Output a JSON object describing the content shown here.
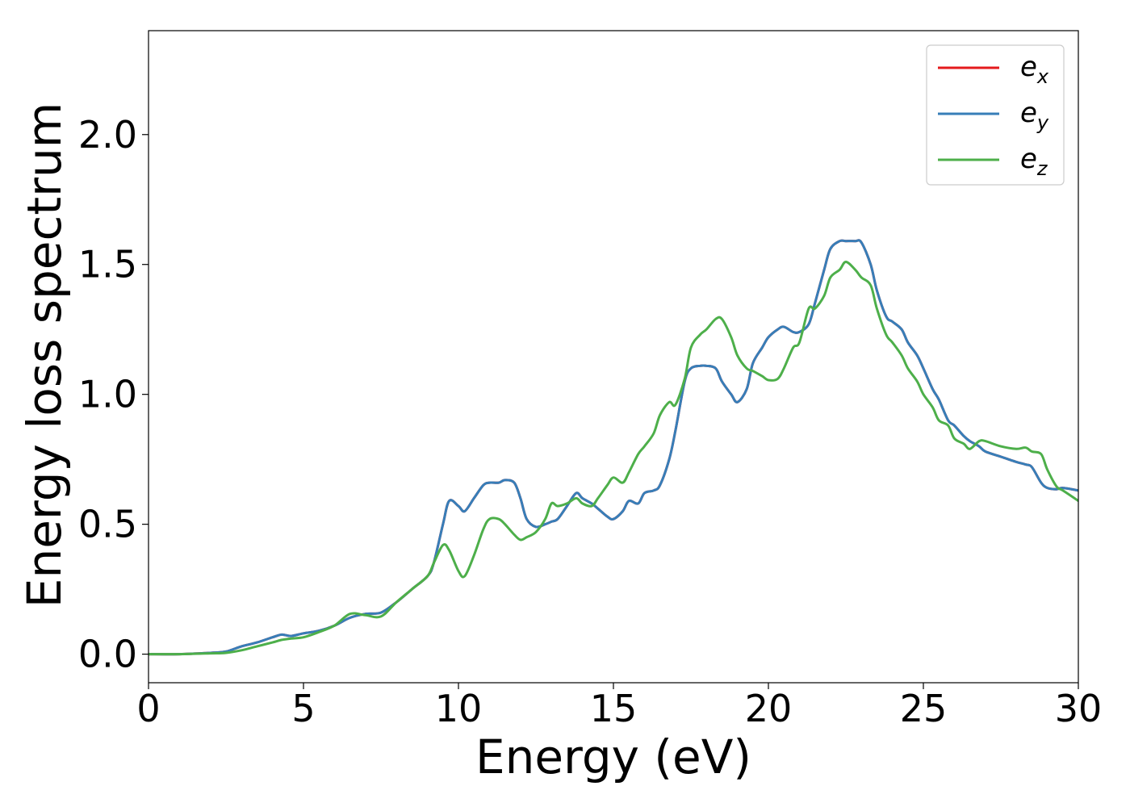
{
  "chart_data": {
    "type": "line",
    "xlabel": "Energy (eV)",
    "ylabel": "Energy loss spectrum",
    "xlim": [
      0,
      30
    ],
    "ylim": [
      -0.11,
      2.4
    ],
    "xticks": [
      0,
      5,
      10,
      15,
      20,
      25,
      30
    ],
    "xtick_labels": [
      "0",
      "5",
      "10",
      "15",
      "20",
      "25",
      "30"
    ],
    "yticks": [
      0.0,
      0.5,
      1.0,
      1.5,
      2.0
    ],
    "ytick_labels": [
      "0.0",
      "0.5",
      "1.0",
      "1.5",
      "2.0"
    ],
    "grid": false,
    "legend_position": "top-right",
    "series": [
      {
        "name": "e",
        "subscript": "x",
        "color": "#e41a1c",
        "x": [
          0,
          1,
          2,
          2.5,
          3,
          3.5,
          4,
          4.3,
          4.6,
          5,
          5.5,
          6,
          6.5,
          7,
          7.5,
          8,
          8.5,
          9,
          9.2,
          9.5,
          9.7,
          10,
          10.2,
          10.5,
          10.8,
          11,
          11.3,
          11.5,
          11.8,
          12,
          12.2,
          12.5,
          12.8,
          13,
          13.2,
          13.5,
          13.8,
          14,
          14.3,
          14.5,
          14.8,
          15,
          15.3,
          15.5,
          15.8,
          16,
          16.3,
          16.5,
          16.8,
          17,
          17.3,
          17.5,
          17.8,
          18,
          18.3,
          18.5,
          18.8,
          19,
          19.3,
          19.5,
          19.8,
          20,
          20.3,
          20.5,
          20.8,
          21,
          21.3,
          21.5,
          21.8,
          22,
          22.3,
          22.5,
          22.8,
          23,
          23.3,
          23.5,
          23.8,
          24,
          24.3,
          24.5,
          24.8,
          25,
          25.3,
          25.5,
          25.8,
          26,
          26.3,
          26.5,
          26.8,
          27,
          27.5,
          28,
          28.3,
          28.5,
          28.8,
          29,
          29.3,
          29.5,
          30
        ],
        "y": [
          0,
          0,
          0.005,
          0.01,
          0.03,
          0.045,
          0.065,
          0.075,
          0.07,
          0.08,
          0.09,
          0.11,
          0.14,
          0.155,
          0.16,
          0.2,
          0.25,
          0.3,
          0.35,
          0.5,
          0.59,
          0.57,
          0.55,
          0.6,
          0.65,
          0.66,
          0.66,
          0.67,
          0.66,
          0.6,
          0.52,
          0.49,
          0.5,
          0.51,
          0.52,
          0.57,
          0.62,
          0.6,
          0.58,
          0.56,
          0.53,
          0.52,
          0.55,
          0.59,
          0.58,
          0.62,
          0.63,
          0.65,
          0.75,
          0.86,
          1.05,
          1.1,
          1.11,
          1.11,
          1.1,
          1.05,
          1.0,
          0.97,
          1.02,
          1.12,
          1.18,
          1.22,
          1.25,
          1.26,
          1.24,
          1.24,
          1.27,
          1.35,
          1.48,
          1.56,
          1.59,
          1.59,
          1.59,
          1.585,
          1.5,
          1.4,
          1.3,
          1.28,
          1.25,
          1.2,
          1.15,
          1.1,
          1.02,
          0.98,
          0.9,
          0.88,
          0.84,
          0.82,
          0.8,
          0.78,
          0.76,
          0.74,
          0.73,
          0.72,
          0.66,
          0.64,
          0.635,
          0.64,
          0.63
        ]
      },
      {
        "name": "e",
        "subscript": "y",
        "color": "#377eb8",
        "x": [
          0,
          1,
          2,
          2.5,
          3,
          3.5,
          4,
          4.3,
          4.6,
          5,
          5.5,
          6,
          6.5,
          7,
          7.5,
          8,
          8.5,
          9,
          9.2,
          9.5,
          9.7,
          10,
          10.2,
          10.5,
          10.8,
          11,
          11.3,
          11.5,
          11.8,
          12,
          12.2,
          12.5,
          12.8,
          13,
          13.2,
          13.5,
          13.8,
          14,
          14.3,
          14.5,
          14.8,
          15,
          15.3,
          15.5,
          15.8,
          16,
          16.3,
          16.5,
          16.8,
          17,
          17.3,
          17.5,
          17.8,
          18,
          18.3,
          18.5,
          18.8,
          19,
          19.3,
          19.5,
          19.8,
          20,
          20.3,
          20.5,
          20.8,
          21,
          21.3,
          21.5,
          21.8,
          22,
          22.3,
          22.5,
          22.8,
          23,
          23.3,
          23.5,
          23.8,
          24,
          24.3,
          24.5,
          24.8,
          25,
          25.3,
          25.5,
          25.8,
          26,
          26.3,
          26.5,
          26.8,
          27,
          27.5,
          28,
          28.3,
          28.5,
          28.8,
          29,
          29.3,
          29.5,
          30
        ],
        "y": [
          0,
          0,
          0.005,
          0.01,
          0.03,
          0.045,
          0.065,
          0.075,
          0.07,
          0.08,
          0.09,
          0.11,
          0.14,
          0.155,
          0.16,
          0.2,
          0.25,
          0.3,
          0.35,
          0.5,
          0.59,
          0.57,
          0.55,
          0.6,
          0.65,
          0.66,
          0.66,
          0.67,
          0.66,
          0.6,
          0.52,
          0.49,
          0.5,
          0.51,
          0.52,
          0.57,
          0.62,
          0.6,
          0.58,
          0.56,
          0.53,
          0.52,
          0.55,
          0.59,
          0.58,
          0.62,
          0.63,
          0.65,
          0.75,
          0.86,
          1.05,
          1.1,
          1.11,
          1.11,
          1.1,
          1.05,
          1.0,
          0.97,
          1.02,
          1.12,
          1.18,
          1.22,
          1.25,
          1.26,
          1.24,
          1.24,
          1.27,
          1.35,
          1.48,
          1.56,
          1.59,
          1.59,
          1.59,
          1.585,
          1.5,
          1.4,
          1.3,
          1.28,
          1.25,
          1.2,
          1.15,
          1.1,
          1.02,
          0.98,
          0.9,
          0.88,
          0.84,
          0.82,
          0.8,
          0.78,
          0.76,
          0.74,
          0.73,
          0.72,
          0.66,
          0.64,
          0.635,
          0.64,
          0.63
        ]
      },
      {
        "name": "e",
        "subscript": "z",
        "color": "#4daf4a",
        "x": [
          0,
          1,
          2,
          2.5,
          3,
          3.5,
          4,
          4.3,
          4.6,
          5,
          5.5,
          6,
          6.5,
          7,
          7.5,
          8,
          8.5,
          9,
          9.2,
          9.5,
          9.7,
          10,
          10.2,
          10.5,
          10.8,
          11,
          11.3,
          11.5,
          11.8,
          12,
          12.2,
          12.5,
          12.8,
          13,
          13.2,
          13.5,
          13.8,
          14,
          14.3,
          14.5,
          14.8,
          15,
          15.3,
          15.5,
          15.8,
          16,
          16.3,
          16.5,
          16.8,
          17,
          17.3,
          17.5,
          17.8,
          18,
          18.3,
          18.5,
          18.8,
          19,
          19.3,
          19.5,
          19.8,
          20,
          20.3,
          20.5,
          20.8,
          21,
          21.3,
          21.5,
          21.8,
          22,
          22.3,
          22.5,
          22.8,
          23,
          23.3,
          23.5,
          23.8,
          24,
          24.3,
          24.5,
          24.8,
          25,
          25.3,
          25.5,
          25.8,
          26,
          26.3,
          26.5,
          26.8,
          27,
          27.5,
          28,
          28.3,
          28.5,
          28.8,
          29,
          29.3,
          29.5,
          30
        ],
        "y": [
          0,
          0,
          0.003,
          0.005,
          0.015,
          0.03,
          0.045,
          0.055,
          0.06,
          0.065,
          0.085,
          0.11,
          0.155,
          0.15,
          0.145,
          0.2,
          0.25,
          0.3,
          0.35,
          0.42,
          0.4,
          0.32,
          0.3,
          0.38,
          0.48,
          0.52,
          0.52,
          0.5,
          0.46,
          0.44,
          0.45,
          0.47,
          0.52,
          0.58,
          0.57,
          0.58,
          0.6,
          0.58,
          0.57,
          0.6,
          0.65,
          0.68,
          0.66,
          0.7,
          0.77,
          0.8,
          0.85,
          0.92,
          0.97,
          0.96,
          1.06,
          1.18,
          1.23,
          1.25,
          1.29,
          1.29,
          1.22,
          1.15,
          1.1,
          1.09,
          1.07,
          1.055,
          1.06,
          1.1,
          1.18,
          1.2,
          1.33,
          1.33,
          1.38,
          1.45,
          1.48,
          1.51,
          1.48,
          1.45,
          1.42,
          1.33,
          1.23,
          1.2,
          1.15,
          1.1,
          1.05,
          1.0,
          0.95,
          0.9,
          0.88,
          0.83,
          0.81,
          0.79,
          0.82,
          0.82,
          0.8,
          0.79,
          0.795,
          0.78,
          0.77,
          0.71,
          0.645,
          0.63,
          0.59
        ]
      }
    ]
  }
}
